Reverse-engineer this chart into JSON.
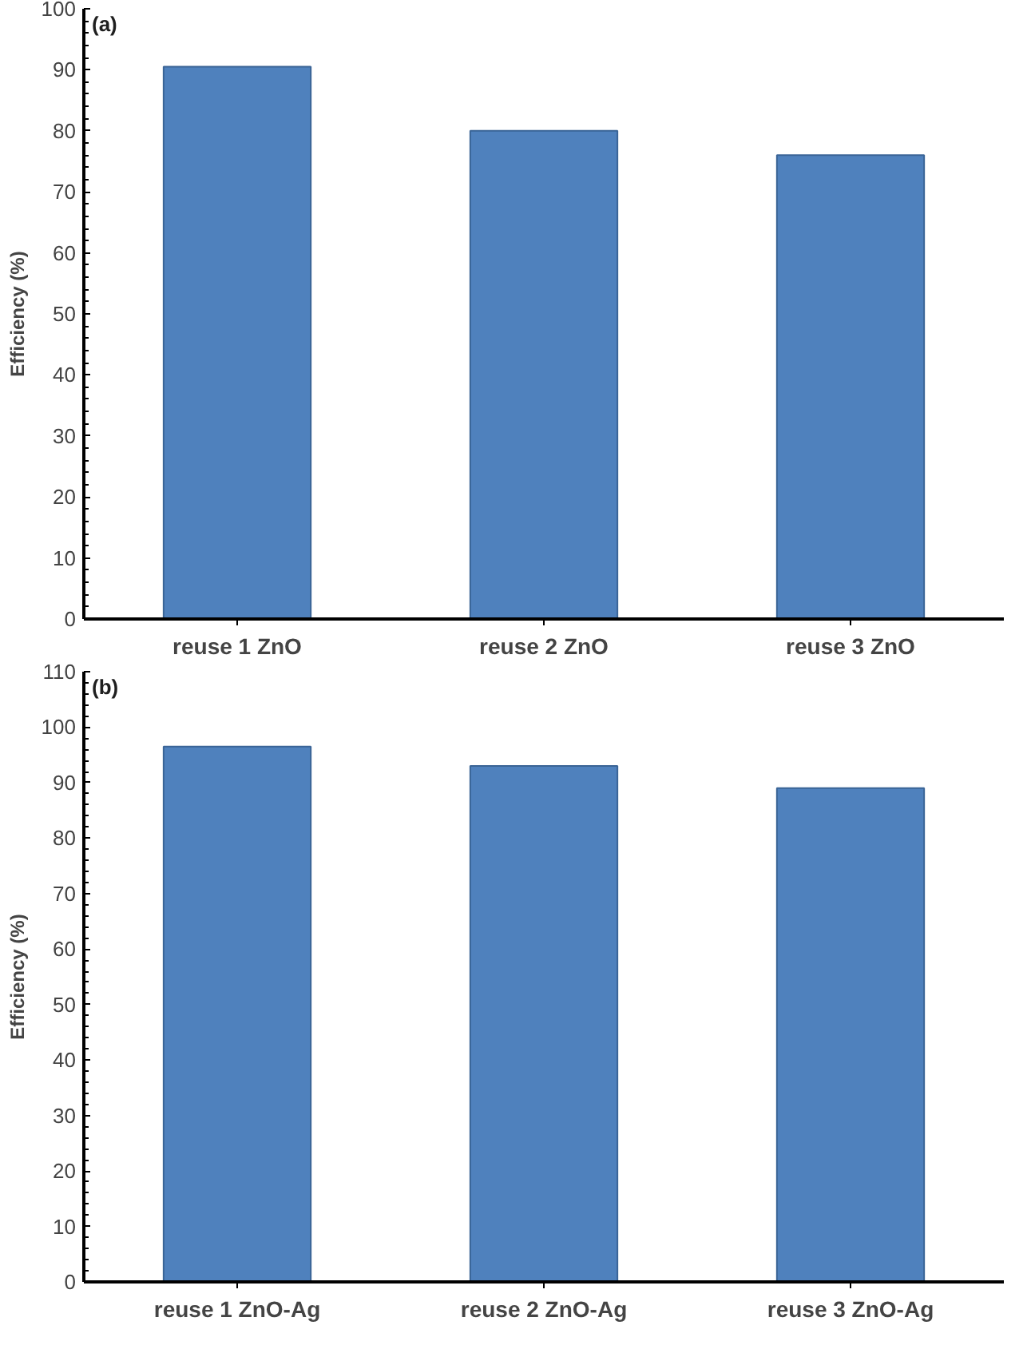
{
  "chart_data": [
    {
      "type": "bar",
      "title": "(a)",
      "ylabel": "Efficiency (%)",
      "categories": [
        "reuse 1 ZnO",
        "reuse 2 ZnO",
        "reuse 3 ZnO"
      ],
      "values": [
        90.5,
        80,
        76
      ],
      "color": "#4f81bd",
      "ylim": [
        0,
        100
      ],
      "yticks": [
        0,
        10,
        20,
        30,
        40,
        50,
        60,
        70,
        80,
        90,
        100
      ],
      "grid": false
    },
    {
      "type": "bar",
      "title": "(b)",
      "ylabel": "Efficiency (%)",
      "categories": [
        "reuse 1 ZnO-Ag",
        "reuse 2 ZnO-Ag",
        "reuse 3 ZnO-Ag"
      ],
      "values": [
        96.5,
        93,
        89
      ],
      "color": "#4f81bd",
      "ylim": [
        0,
        110
      ],
      "yticks": [
        0,
        10,
        20,
        30,
        40,
        50,
        60,
        70,
        80,
        90,
        100,
        110
      ],
      "grid": false
    }
  ]
}
